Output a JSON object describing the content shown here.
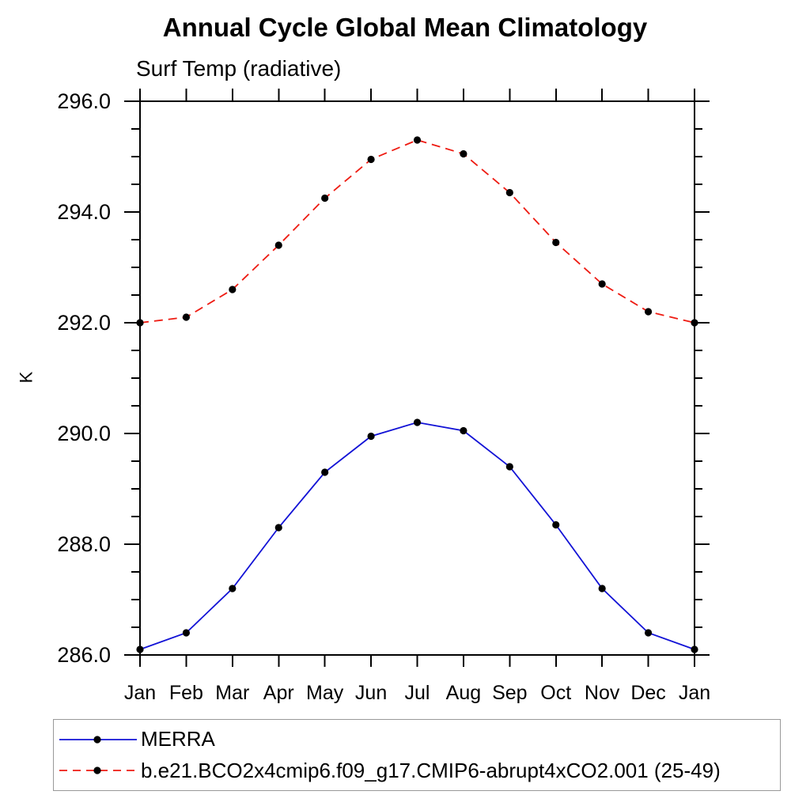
{
  "chart": {
    "title": "Annual Cycle Global Mean Climatology",
    "subtitle": "Surf Temp (radiative)",
    "y_axis_unit": "K"
  },
  "chart_data": {
    "type": "line",
    "title": "Annual Cycle Global Mean Climatology",
    "subtitle": "Surf Temp (radiative)",
    "ylabel": "K",
    "xlabel": "",
    "grid": false,
    "legend_position": "bottom-left-box",
    "categories": [
      "Jan",
      "Feb",
      "Mar",
      "Apr",
      "May",
      "Jun",
      "Jul",
      "Aug",
      "Sep",
      "Oct",
      "Nov",
      "Dec",
      "Jan"
    ],
    "ylim": [
      286.0,
      296.0
    ],
    "ytick_labels": [
      {
        "value": 296.0,
        "label": "296.0"
      },
      {
        "value": 294.0,
        "label": "294.0"
      },
      {
        "value": 292.0,
        "label": "292.0"
      },
      {
        "value": 290.0,
        "label": "290.0"
      },
      {
        "value": 288.0,
        "label": "288.0"
      },
      {
        "value": 286.0,
        "label": "286.0"
      }
    ],
    "ytick_minor_step": 0.5,
    "series": [
      {
        "name": "MERRA",
        "line_color": "#1212d6",
        "line_style": "solid",
        "marker": "filled-circle",
        "marker_color": "#000000",
        "values": [
          286.1,
          286.4,
          287.2,
          288.3,
          289.3,
          289.95,
          290.2,
          290.05,
          289.4,
          288.35,
          287.2,
          286.4,
          286.1
        ]
      },
      {
        "name": "b.e21.BCO2x4cmip6.f09_g17.CMIP6-abrupt4xCO2.001 (25-49)",
        "line_color": "#ee1b12",
        "line_style": "dashed",
        "marker": "filled-circle",
        "marker_color": "#000000",
        "values": [
          292.0,
          292.1,
          292.6,
          293.4,
          294.25,
          294.95,
          295.3,
          295.05,
          294.35,
          293.45,
          292.7,
          292.2,
          292.0
        ]
      }
    ]
  }
}
